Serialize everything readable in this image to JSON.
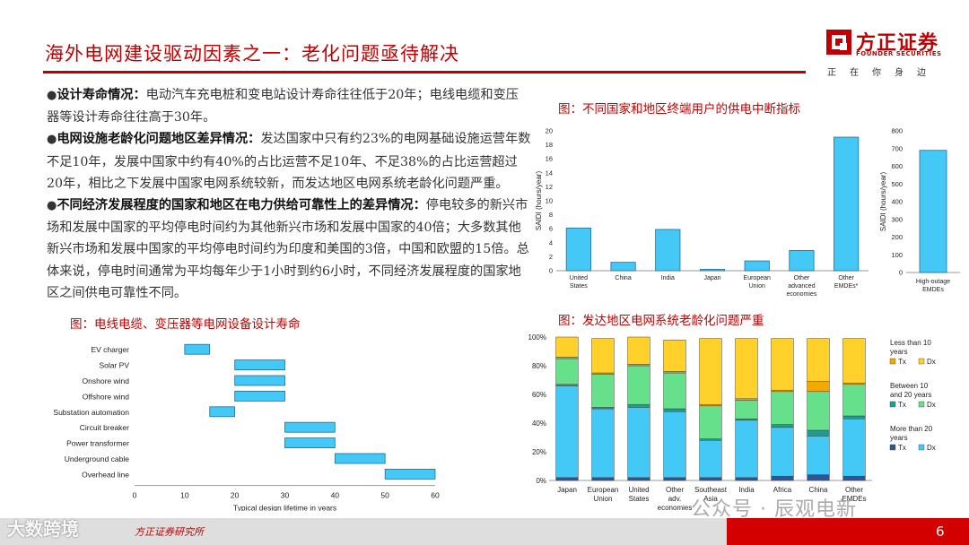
{
  "header": {
    "title": "海外电网建设驱动因素之一：老化问题亟待解决",
    "logo": {
      "name": "方正证券",
      "en": "FOUNDER SECURITIES",
      "slogan": "正在你身边"
    }
  },
  "body": {
    "p1_head": "设计寿命情况：",
    "p1_text": "电动汽车充电桩和变电站设计寿命往往低于20年；电线电缆和变压器等设计寿命往往高于30年。",
    "p2_head": "电网设施老龄化问题地区差异情况：",
    "p2_text": "发达国家中只有约23%的电网基础设施运营年数不足10年，发展中国家中约有40%的占比运营不足10年、不足38%的占比运营超过20年，相比之下发展中国家电网系统较新，而发达地区电网系统老龄化问题严重。",
    "p3_head": "不同经济发展程度的国家和地区在电力供给可靠性上的差异情况：",
    "p3_text": "停电较多的新兴市场和发展中国家的平均停电时间约为其他新兴市场和发展中国家的40倍；大多数其他新兴市场和发展中国家的平均停电时间约为印度和美国的3倍，中国和欧盟的15倍。总体来说，停电时间通常为平均每年少于1小时到约6小时，不同经济发展程度的国家地区之间供电可靠性不同。"
  },
  "captions": {
    "lifetime": "图：电线电缆、变压器等电网设备设计寿命",
    "saidi": "图：不同国家和地区终端用户的供电中断指标",
    "aging": "图：发达地区电网系统老龄化问题严重"
  },
  "footer": {
    "source": "方正证券研究所",
    "page": "6",
    "watermark_left": "大数跨境",
    "watermark_right": "公众号 · 辰观电新"
  },
  "colors": {
    "red": "#c00000",
    "bar_blue": "#44c8f5",
    "bar_border": "#1c6f9e",
    "tx_over20": "#2f5597",
    "dx_over20": "#44c8f5",
    "tx_10_20": "#1f9e8f",
    "dx_10_20": "#66e08a",
    "tx_under10": "#f5a800",
    "dx_under10": "#ffd12a"
  },
  "chart_data": [
    {
      "id": "lifetime",
      "type": "bar",
      "orientation": "horizontal-range",
      "categories": [
        "EV charger",
        "Solar PV",
        "Onshore wind",
        "Offshore wind",
        "Substation automation",
        "Circuit breaker",
        "Power transformer",
        "Underground cable",
        "Overhead line"
      ],
      "ranges": [
        [
          10,
          15
        ],
        [
          20,
          30
        ],
        [
          20,
          30
        ],
        [
          20,
          30
        ],
        [
          15,
          20
        ],
        [
          30,
          40
        ],
        [
          30,
          40
        ],
        [
          40,
          50
        ],
        [
          50,
          60
        ]
      ],
      "xlabel": "Typical design lifetime in years",
      "xlim": [
        0,
        60
      ],
      "xticks": [
        0,
        10,
        20,
        30,
        40,
        50,
        60
      ],
      "grid": false
    },
    {
      "id": "saidi",
      "type": "bar",
      "categories": [
        "United States",
        "China",
        "India",
        "Japan",
        "European Union",
        "Other advanced economies",
        "Other EMDEs*"
      ],
      "values": [
        6.1,
        1.2,
        5.9,
        0.2,
        1.4,
        2.9,
        19.1
      ],
      "ylabel": "SAIDI (hours/year)",
      "ylim": [
        0,
        20
      ],
      "yticks": [
        0,
        2,
        4,
        6,
        8,
        10,
        12,
        14,
        16,
        18,
        20
      ],
      "grid": false
    },
    {
      "id": "saidi_high_outage",
      "type": "bar",
      "categories": [
        "High-outage EMDEs"
      ],
      "values": [
        690
      ],
      "ylabel": "SAIDI (hours/year)",
      "ylim": [
        0,
        800
      ],
      "yticks": [
        0,
        100,
        200,
        300,
        400,
        500,
        600,
        700,
        800
      ],
      "grid": false
    },
    {
      "id": "aging",
      "type": "bar",
      "stacked": true,
      "categories": [
        "Japan",
        "European Union",
        "United States",
        "Other adv. economies",
        "Southeast Asia",
        "India",
        "Africa",
        "China",
        "Other EMDEs"
      ],
      "series": [
        {
          "name": "Tx",
          "group": "More than 20 years",
          "values": [
            2,
            2,
            2,
            2,
            2,
            2,
            3,
            4,
            3
          ]
        },
        {
          "name": "Dx",
          "group": "More than 20 years",
          "values": [
            64,
            48,
            49,
            46,
            26,
            40,
            34,
            27,
            40
          ]
        },
        {
          "name": "Tx",
          "group": "Between 10 and 20 years",
          "values": [
            1,
            1,
            2,
            2,
            1,
            1,
            2,
            4,
            2
          ]
        },
        {
          "name": "Dx",
          "group": "Between 10 and 20 years",
          "values": [
            18,
            23,
            27,
            25,
            23,
            13,
            23,
            27,
            22
          ]
        },
        {
          "name": "Tx",
          "group": "Less than 10 years",
          "values": [
            1,
            1,
            1,
            1,
            1,
            1,
            1,
            7,
            1
          ]
        },
        {
          "name": "Dx",
          "group": "Less than 10 years",
          "values": [
            14,
            24,
            19,
            22,
            46,
            42,
            36,
            30,
            31
          ]
        }
      ],
      "legend_groups": [
        "Less than 10 years",
        "Between 10 and 20 years",
        "More than 20 years"
      ],
      "ylim": [
        0,
        100
      ],
      "yticks": [
        "0%",
        "20%",
        "40%",
        "60%",
        "80%",
        "100%"
      ],
      "legend": "right",
      "grid": false
    }
  ]
}
